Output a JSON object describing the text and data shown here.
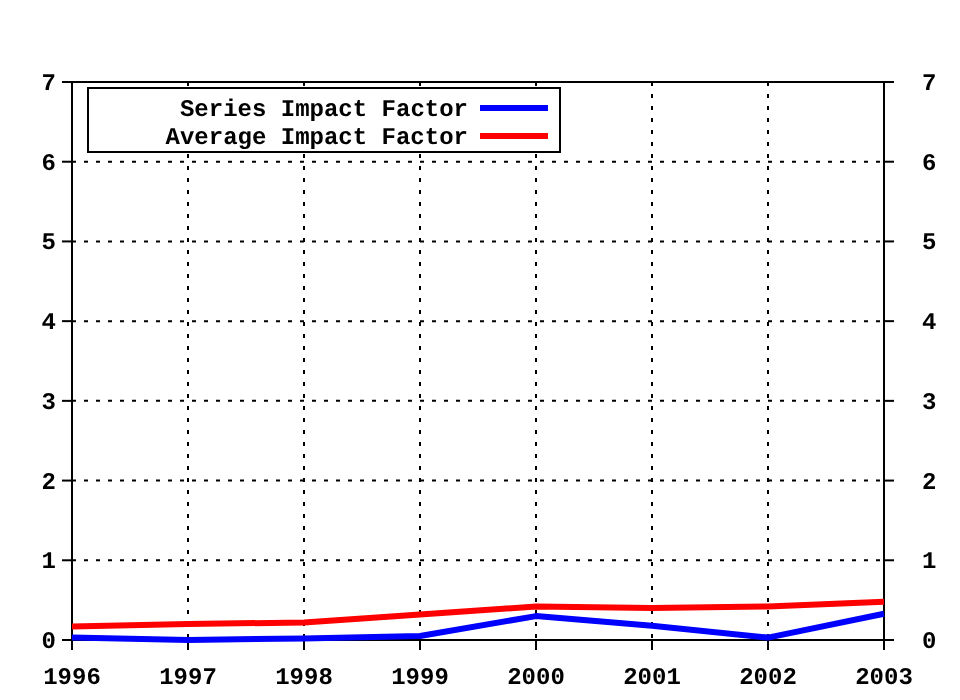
{
  "chart_data": {
    "type": "line",
    "x": [
      1996,
      1997,
      1998,
      1999,
      2000,
      2001,
      2002,
      2003
    ],
    "xlim": [
      1996,
      2003
    ],
    "xticks": [
      1996,
      1997,
      1998,
      1999,
      2000,
      2001,
      2002,
      2003
    ],
    "ylim": [
      0,
      7
    ],
    "yticks": [
      0,
      1,
      2,
      3,
      4,
      5,
      6,
      7
    ],
    "y2lim": [
      0,
      7
    ],
    "y2ticks": [
      0,
      1,
      2,
      3,
      4,
      5,
      6,
      7
    ],
    "grid": true,
    "legend": "top left",
    "marker": "none",
    "line_style": "solid",
    "series": [
      {
        "name": "Series Impact Factor",
        "color": "#0000ff",
        "values": [
          0.03,
          0.0,
          0.02,
          0.05,
          0.3,
          0.18,
          0.03,
          0.33
        ]
      },
      {
        "name": "Average Impact Factor",
        "color": "#ff0000",
        "values": [
          0.17,
          0.2,
          0.22,
          0.32,
          0.42,
          0.4,
          0.42,
          0.48
        ]
      }
    ]
  }
}
